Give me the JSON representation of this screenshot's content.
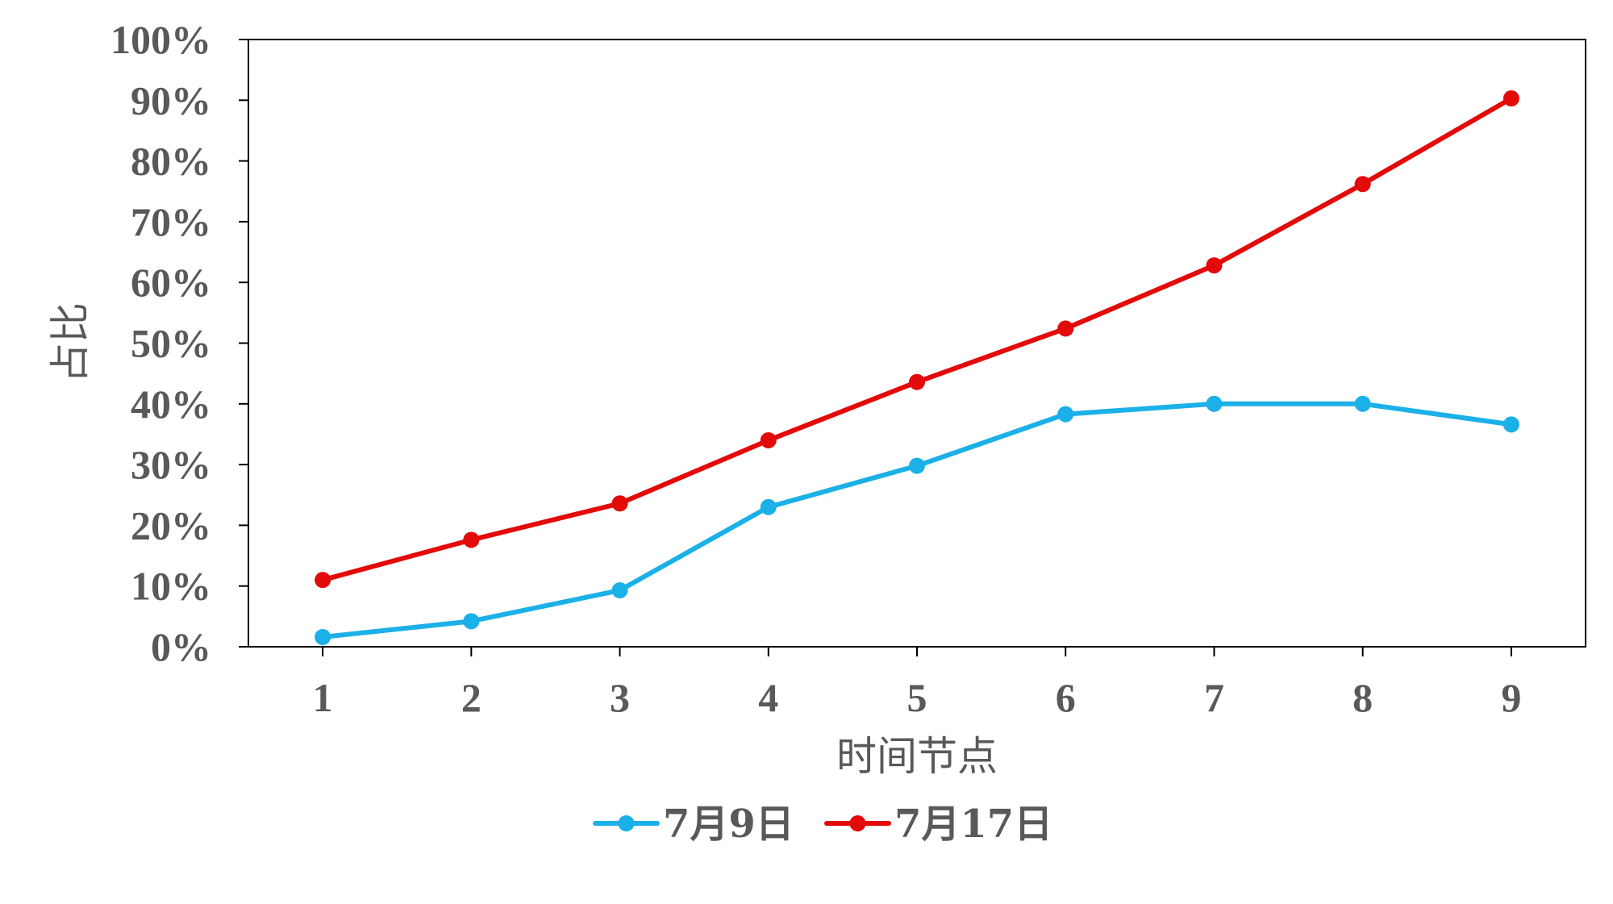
{
  "chart_data": {
    "type": "line",
    "title": "",
    "xlabel": "时间节点",
    "ylabel": "占比",
    "categories": [
      "1",
      "2",
      "3",
      "4",
      "5",
      "6",
      "7",
      "8",
      "9"
    ],
    "y_ticks": [
      "0%",
      "10%",
      "20%",
      "30%",
      "40%",
      "50%",
      "60%",
      "70%",
      "80%",
      "90%",
      "100%"
    ],
    "ylim": [
      0,
      100
    ],
    "y_unit": "%",
    "grid": false,
    "legend_position": "bottom",
    "series": [
      {
        "name": "7月9日",
        "color": "#1BB0E8",
        "values": [
          1.6,
          4.2,
          9.3,
          23.0,
          29.8,
          38.3,
          40.0,
          40.0,
          36.6
        ]
      },
      {
        "name": "7月17日",
        "color": "#E30A0A",
        "values": [
          11.0,
          17.6,
          23.6,
          34.0,
          43.6,
          52.4,
          62.8,
          76.2,
          90.3
        ]
      }
    ]
  }
}
